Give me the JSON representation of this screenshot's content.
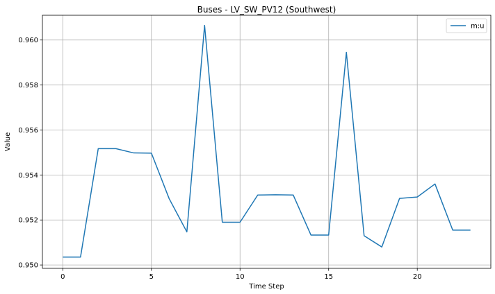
{
  "chart_data": {
    "type": "line",
    "title": "Buses - LV_SW_PV12 (Southwest)",
    "xlabel": "Time Step",
    "ylabel": "Value",
    "xlim": [
      -1.15,
      24.15
    ],
    "ylim": [
      0.94985,
      0.9611
    ],
    "xticks": [
      0,
      5,
      10,
      15,
      20
    ],
    "yticks": [
      0.95,
      0.952,
      0.954,
      0.956,
      0.958,
      0.96
    ],
    "grid": true,
    "legend": "top-right",
    "series": [
      {
        "name": "m:u",
        "color": "#1f77b4",
        "x": [
          0,
          1,
          2,
          3,
          4,
          5,
          6,
          7,
          8,
          9,
          10,
          11,
          12,
          13,
          14,
          15,
          16,
          17,
          18,
          19,
          20,
          21,
          22,
          23
        ],
        "y": [
          0.95035,
          0.95035,
          0.95517,
          0.95517,
          0.95498,
          0.95497,
          0.95295,
          0.95147,
          0.96065,
          0.9519,
          0.9519,
          0.95311,
          0.95312,
          0.95311,
          0.95133,
          0.95133,
          0.95945,
          0.9513,
          0.9508,
          0.95296,
          0.95302,
          0.9536,
          0.95155,
          0.95155
        ]
      }
    ]
  }
}
